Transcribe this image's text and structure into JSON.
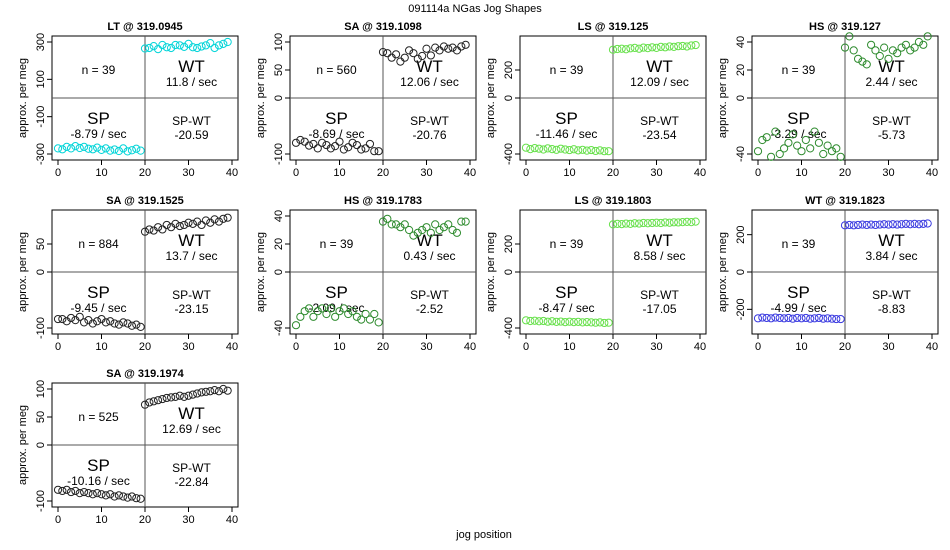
{
  "figure": {
    "title": "091114a   NGas Jog Shapes",
    "xlabel": "jog position"
  },
  "chart_data": [
    {
      "type": "scatter",
      "title": "LT @ 319.0945",
      "ylabel": "approx. per meg",
      "xlim": [
        0,
        40
      ],
      "ylim": [
        -300,
        300
      ],
      "yticks": [
        -300,
        -100,
        100,
        300
      ],
      "xticks": [
        0,
        10,
        20,
        30,
        40
      ],
      "color": "#00d4d8",
      "n_label": "n = 39",
      "wt": {
        "label": "WT",
        "rate": "11.8 / sec"
      },
      "sp": {
        "label": "SP",
        "rate": "-8.79 / sec"
      },
      "diff": {
        "label": "SP-WT",
        "value": "-20.59"
      },
      "series": [
        {
          "values": [
            -270,
            -275,
            -262,
            -270,
            -258,
            -268,
            -262,
            -272,
            -275,
            -266,
            -278,
            -270,
            -282,
            -276,
            -284,
            -270,
            -286,
            -280,
            -272,
            -282
          ]
        },
        {
          "values": [
            265,
            268,
            278,
            262,
            284,
            272,
            268,
            284,
            282,
            274,
            290,
            272,
            268,
            276,
            282,
            294,
            268,
            282,
            290,
            300
          ]
        }
      ]
    },
    {
      "type": "scatter",
      "title": "SA @ 319.1098",
      "ylabel": "approx. per meg",
      "xlim": [
        0,
        40
      ],
      "ylim": [
        -100,
        100
      ],
      "yticks": [
        -100,
        0,
        50,
        100
      ],
      "xticks": [
        0,
        10,
        20,
        30,
        40
      ],
      "color": "#222222",
      "n_label": "n = 560",
      "wt": {
        "label": "WT",
        "rate": "12.06 / sec"
      },
      "sp": {
        "label": "SP",
        "rate": "-8.69 / sec"
      },
      "diff": {
        "label": "SP-WT",
        "value": "-20.76"
      },
      "series": [
        {
          "values": [
            -80,
            -75,
            -78,
            -85,
            -82,
            -90,
            -80,
            -84,
            -90,
            -86,
            -78,
            -92,
            -88,
            -80,
            -84,
            -92,
            -90,
            -82,
            -95,
            -95
          ]
        },
        {
          "values": [
            82,
            80,
            72,
            78,
            65,
            72,
            85,
            80,
            70,
            75,
            88,
            76,
            90,
            85,
            92,
            88,
            90,
            85,
            92,
            95
          ]
        }
      ]
    },
    {
      "type": "scatter",
      "title": "LS @ 319.125",
      "ylabel": "approx. per meg",
      "xlim": [
        0,
        40
      ],
      "ylim": [
        -400,
        400
      ],
      "yticks": [
        -400,
        0,
        200
      ],
      "xticks": [
        0,
        10,
        20,
        30,
        40
      ],
      "color": "#66e04a",
      "n_label": "n = 39",
      "wt": {
        "label": "WT",
        "rate": "12.09 / sec"
      },
      "sp": {
        "label": "SP",
        "rate": "-11.46 / sec"
      },
      "diff": {
        "label": "SP-WT",
        "value": "-23.54"
      },
      "series": [
        {
          "values": [
            -355,
            -365,
            -358,
            -362,
            -368,
            -360,
            -365,
            -370,
            -362,
            -368,
            -372,
            -366,
            -374,
            -370,
            -376,
            -372,
            -378,
            -374,
            -380,
            -380
          ]
        },
        {
          "values": [
            345,
            350,
            352,
            348,
            355,
            358,
            352,
            360,
            356,
            362,
            358,
            365,
            362,
            368,
            365,
            370,
            372,
            368,
            375,
            378
          ]
        }
      ]
    },
    {
      "type": "scatter",
      "title": "HS @ 319.127",
      "ylabel": "approx. per meg",
      "xlim": [
        0,
        40
      ],
      "ylim": [
        -40,
        40
      ],
      "yticks": [
        -40,
        0,
        20,
        40
      ],
      "xticks": [
        0,
        10,
        20,
        30,
        40
      ],
      "color": "#2e8b2e",
      "n_label": "n = 39",
      "wt": {
        "label": "WT",
        "rate": "2.44 / sec"
      },
      "sp": {
        "label": "SP",
        "rate": "-3.29 / sec"
      },
      "diff": {
        "label": "SP-WT",
        "value": "-5.73"
      },
      "series": [
        {
          "values": [
            -38,
            -30,
            -28,
            -42,
            -24,
            -40,
            -36,
            -32,
            -26,
            -34,
            -38,
            -30,
            -36,
            -24,
            -32,
            -40,
            -34,
            -38,
            -36,
            -42
          ]
        },
        {
          "values": [
            36,
            44,
            34,
            28,
            26,
            24,
            38,
            34,
            30,
            36,
            28,
            34,
            32,
            36,
            38,
            34,
            36,
            40,
            38,
            44
          ]
        }
      ]
    },
    {
      "type": "scatter",
      "title": "SA @ 319.1525",
      "ylabel": "approx. per meg",
      "xlim": [
        0,
        40
      ],
      "ylim": [
        -100,
        100
      ],
      "yticks": [
        -100,
        0,
        50
      ],
      "xticks": [
        0,
        10,
        20,
        30,
        40
      ],
      "color": "#222222",
      "n_label": "n = 884",
      "wt": {
        "label": "WT",
        "rate": "13.7 / sec"
      },
      "sp": {
        "label": "SP",
        "rate": "-9.45 / sec"
      },
      "diff": {
        "label": "SP-WT",
        "value": "-23.15"
      },
      "series": [
        {
          "values": [
            -84,
            -84,
            -88,
            -82,
            -86,
            -80,
            -90,
            -86,
            -92,
            -88,
            -84,
            -90,
            -88,
            -92,
            -94,
            -90,
            -92,
            -96,
            -94,
            -98
          ]
        },
        {
          "values": [
            72,
            76,
            74,
            80,
            76,
            84,
            80,
            86,
            82,
            84,
            88,
            86,
            90,
            84,
            92,
            88,
            94,
            90,
            95,
            97
          ]
        }
      ]
    },
    {
      "type": "scatter",
      "title": "HS @ 319.1783",
      "ylabel": "approx. per meg",
      "xlim": [
        0,
        40
      ],
      "ylim": [
        -40,
        40
      ],
      "yticks": [
        -40,
        0,
        20,
        40
      ],
      "xticks": [
        0,
        10,
        20,
        30,
        40
      ],
      "color": "#2e8b2e",
      "n_label": "n = 39",
      "wt": {
        "label": "WT",
        "rate": "0.43 / sec"
      },
      "sp": {
        "label": "SP",
        "rate": "-2.09 / sec"
      },
      "diff": {
        "label": "SP-WT",
        "value": "-2.52"
      },
      "series": [
        {
          "values": [
            -38,
            -32,
            -28,
            -26,
            -32,
            -28,
            -26,
            -30,
            -26,
            -32,
            -28,
            -26,
            -30,
            -28,
            -32,
            -34,
            -30,
            -34,
            -30,
            -36
          ]
        },
        {
          "values": [
            36,
            38,
            34,
            34,
            32,
            34,
            30,
            26,
            28,
            30,
            32,
            28,
            34,
            30,
            32,
            34,
            30,
            28,
            36,
            36
          ]
        }
      ]
    },
    {
      "type": "scatter",
      "title": "LS @ 319.1803",
      "ylabel": "approx. per meg",
      "xlim": [
        0,
        40
      ],
      "ylim": [
        -400,
        400
      ],
      "yticks": [
        -400,
        0,
        200
      ],
      "xticks": [
        0,
        10,
        20,
        30,
        40
      ],
      "color": "#66e04a",
      "n_label": "n = 39",
      "wt": {
        "label": "WT",
        "rate": "8.58 / sec"
      },
      "sp": {
        "label": "SP",
        "rate": "-8.47 / sec"
      },
      "diff": {
        "label": "SP-WT",
        "value": "-17.05"
      },
      "series": [
        {
          "values": [
            -345,
            -350,
            -348,
            -352,
            -350,
            -355,
            -352,
            -356,
            -354,
            -358,
            -355,
            -358,
            -356,
            -360,
            -358,
            -360,
            -362,
            -360,
            -364,
            -362
          ]
        },
        {
          "values": [
            340,
            344,
            342,
            346,
            344,
            348,
            346,
            350,
            348,
            350,
            352,
            350,
            354,
            352,
            355,
            354,
            356,
            358,
            356,
            360
          ]
        }
      ]
    },
    {
      "type": "scatter",
      "title": "WT @ 319.1823",
      "ylabel": "approx. per meg",
      "xlim": [
        0,
        40
      ],
      "ylim": [
        -300,
        300
      ],
      "yticks": [
        -200,
        0,
        200
      ],
      "xticks": [
        0,
        10,
        20,
        30,
        40
      ],
      "color": "#3a3ae0",
      "n_label": "n = 39",
      "wt": {
        "label": "WT",
        "rate": "3.84 / sec"
      },
      "sp": {
        "label": "SP",
        "rate": "-4.99 / sec"
      },
      "diff": {
        "label": "SP-WT",
        "value": "-8.83"
      },
      "series": [
        {
          "values": [
            -248,
            -244,
            -246,
            -248,
            -244,
            -246,
            -248,
            -246,
            -250,
            -246,
            -248,
            -246,
            -250,
            -248,
            -246,
            -250,
            -248,
            -250,
            -252,
            -252
          ]
        },
        {
          "values": [
            250,
            252,
            250,
            252,
            254,
            252,
            254,
            252,
            254,
            256,
            254,
            256,
            254,
            256,
            258,
            256,
            258,
            256,
            258,
            260
          ]
        }
      ]
    },
    {
      "type": "scatter",
      "title": "SA @ 319.1974",
      "ylabel": "approx. per meg",
      "xlim": [
        0,
        40
      ],
      "ylim": [
        -100,
        100
      ],
      "yticks": [
        -100,
        0,
        50,
        100
      ],
      "xticks": [
        0,
        10,
        20,
        30,
        40
      ],
      "color": "#222222",
      "n_label": "n = 525",
      "wt": {
        "label": "WT",
        "rate": "12.69 / sec"
      },
      "sp": {
        "label": "SP",
        "rate": "-10.16 / sec"
      },
      "diff": {
        "label": "SP-WT",
        "value": "-22.84"
      },
      "series": [
        {
          "values": [
            -80,
            -82,
            -80,
            -84,
            -82,
            -86,
            -84,
            -86,
            -88,
            -86,
            -88,
            -90,
            -88,
            -92,
            -90,
            -92,
            -94,
            -92,
            -95,
            -96
          ]
        },
        {
          "values": [
            72,
            76,
            78,
            80,
            82,
            84,
            85,
            86,
            88,
            86,
            88,
            90,
            92,
            94,
            95,
            96,
            98,
            96,
            100,
            97
          ]
        }
      ]
    }
  ]
}
